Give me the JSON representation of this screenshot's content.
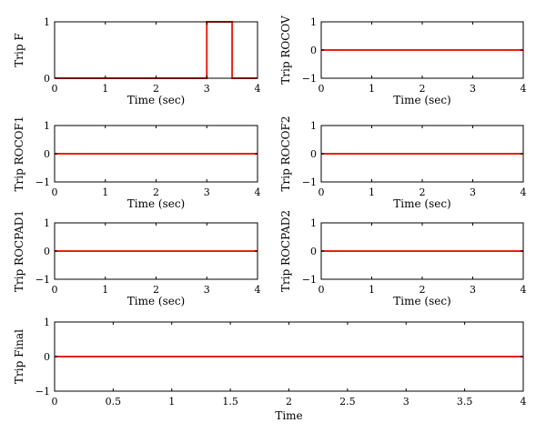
{
  "chart_data": [
    {
      "type": "line",
      "xlabel": "Time (sec)",
      "ylabel": "Trip F",
      "xlim": [
        0,
        4
      ],
      "ylim": [
        0,
        1
      ],
      "xticks": [
        0,
        1,
        2,
        3,
        4
      ],
      "yticks": [
        0,
        1
      ],
      "grid": false,
      "series": [
        {
          "color": "#e8220e",
          "x": [
            0,
            3,
            3,
            3.5,
            3.5,
            4
          ],
          "y": [
            0,
            0,
            1,
            1,
            0,
            0
          ]
        }
      ]
    },
    {
      "type": "line",
      "xlabel": "Time (sec)",
      "ylabel": "Trip ROCOV",
      "xlim": [
        0,
        4
      ],
      "ylim": [
        -1,
        1
      ],
      "xticks": [
        0,
        1,
        2,
        3,
        4
      ],
      "yticks": [
        -1,
        0,
        1
      ],
      "grid": false,
      "series": [
        {
          "color": "#e8220e",
          "x": [
            0,
            4
          ],
          "y": [
            0,
            0
          ]
        }
      ]
    },
    {
      "type": "line",
      "xlabel": "Time (sec)",
      "ylabel": "Trip ROCOF1",
      "xlim": [
        0,
        4
      ],
      "ylim": [
        -1,
        1
      ],
      "xticks": [
        0,
        1,
        2,
        3,
        4
      ],
      "yticks": [
        -1,
        0,
        1
      ],
      "grid": false,
      "series": [
        {
          "color": "#e8220e",
          "x": [
            0,
            4
          ],
          "y": [
            0,
            0
          ]
        }
      ]
    },
    {
      "type": "line",
      "xlabel": "Time (sec)",
      "ylabel": "Trip ROCOF2",
      "xlim": [
        0,
        4
      ],
      "ylim": [
        -1,
        1
      ],
      "xticks": [
        0,
        1,
        2,
        3,
        4
      ],
      "yticks": [
        -1,
        0,
        1
      ],
      "grid": false,
      "series": [
        {
          "color": "#e8220e",
          "x": [
            0,
            4
          ],
          "y": [
            0,
            0
          ]
        }
      ]
    },
    {
      "type": "line",
      "xlabel": "Time (sec)",
      "ylabel": "Trip ROCPAD1",
      "xlim": [
        0,
        4
      ],
      "ylim": [
        -1,
        1
      ],
      "xticks": [
        0,
        1,
        2,
        3,
        4
      ],
      "yticks": [
        -1,
        0,
        1
      ],
      "grid": false,
      "series": [
        {
          "color": "#e8220e",
          "x": [
            0,
            4
          ],
          "y": [
            0,
            0
          ]
        }
      ]
    },
    {
      "type": "line",
      "xlabel": "Time (sec)",
      "ylabel": "Trip ROCPAD2",
      "xlim": [
        0,
        4
      ],
      "ylim": [
        -1,
        1
      ],
      "xticks": [
        0,
        1,
        2,
        3,
        4
      ],
      "yticks": [
        -1,
        0,
        1
      ],
      "grid": false,
      "series": [
        {
          "color": "#e8220e",
          "x": [
            0,
            4
          ],
          "y": [
            0,
            0
          ]
        }
      ]
    },
    {
      "type": "line",
      "xlabel": "Time",
      "ylabel": "Trip Final",
      "xlim": [
        0,
        4
      ],
      "ylim": [
        -1,
        1
      ],
      "xticks": [
        0,
        0.5,
        1,
        1.5,
        2,
        2.5,
        3,
        3.5,
        4
      ],
      "yticks": [
        -1,
        0,
        1
      ],
      "grid": false,
      "series": [
        {
          "color": "#e8220e",
          "x": [
            0,
            4
          ],
          "y": [
            0,
            0
          ]
        }
      ]
    }
  ]
}
